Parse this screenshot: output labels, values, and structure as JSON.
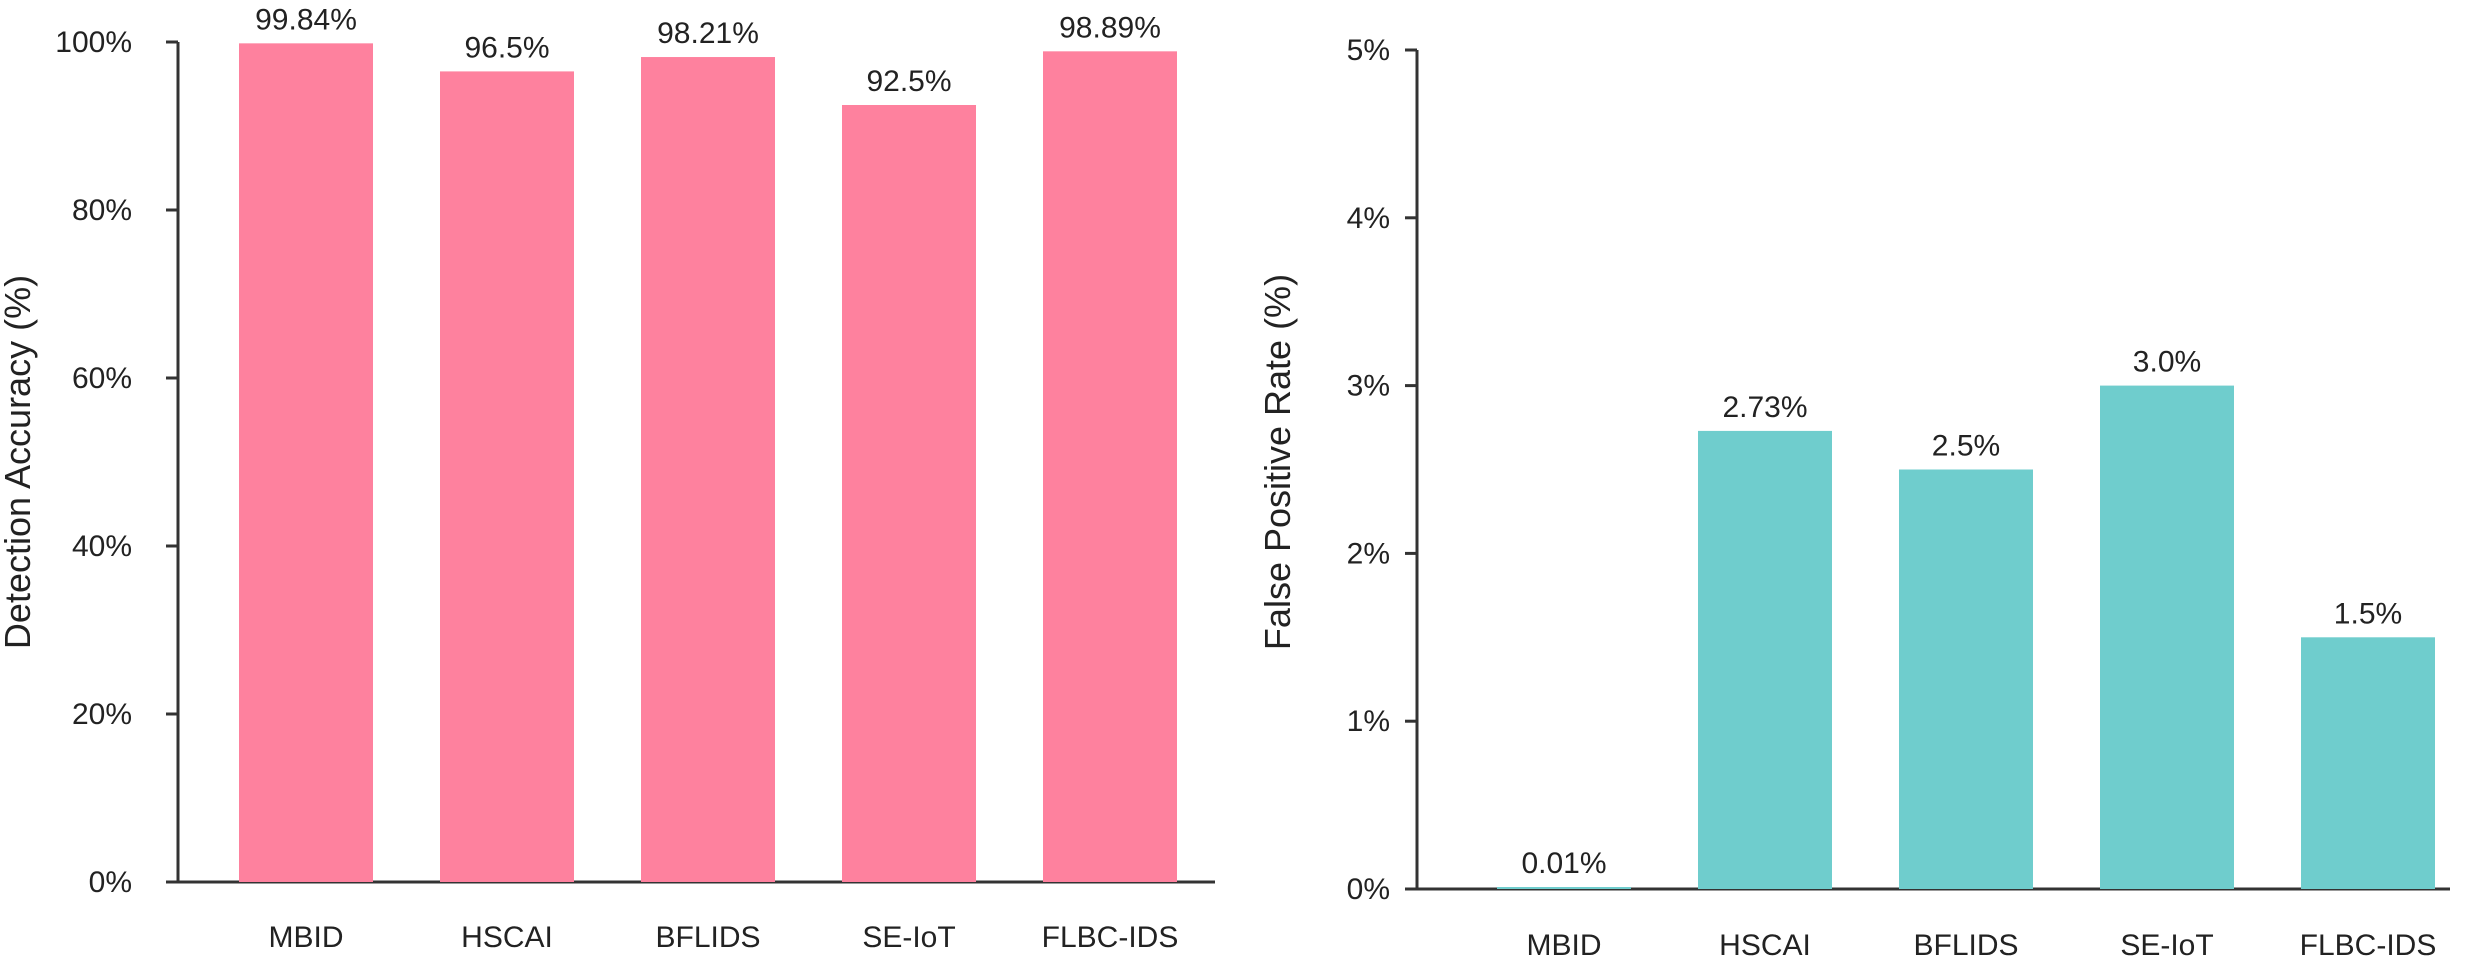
{
  "chart_data": [
    {
      "type": "bar",
      "categories": [
        "MBID",
        "HSCAI",
        "BFLIDS",
        "SE-IoT",
        "FLBC-IDS"
      ],
      "values": [
        99.84,
        96.5,
        98.21,
        92.5,
        98.89
      ],
      "data_labels": [
        "99.84%",
        "96.5%",
        "98.21%",
        "92.5%",
        "98.89%"
      ],
      "ylabel": "Detection Accuracy (%)",
      "xlabel": "",
      "ylim": [
        0,
        100
      ],
      "yticks": [
        0,
        20,
        40,
        60,
        80,
        100
      ],
      "ytick_labels": [
        "0%",
        "20%",
        "40%",
        "60%",
        "80%",
        "100%"
      ],
      "color": "#fe819e",
      "grid": false
    },
    {
      "type": "bar",
      "categories": [
        "MBID",
        "HSCAI",
        "BFLIDS",
        "SE-IoT",
        "FLBC-IDS"
      ],
      "values": [
        0.01,
        2.73,
        2.5,
        3.0,
        1.5
      ],
      "data_labels": [
        "0.01%",
        "2.73%",
        "2.5%",
        "3.0%",
        "1.5%"
      ],
      "ylabel": "False Positive Rate (%)",
      "xlabel": "",
      "ylim": [
        0,
        5
      ],
      "yticks": [
        0,
        1,
        2,
        3,
        4,
        5
      ],
      "ytick_labels": [
        "0%",
        "1%",
        "2%",
        "3%",
        "4%",
        "5%"
      ],
      "color": "#6fcdcd",
      "grid": false
    }
  ]
}
